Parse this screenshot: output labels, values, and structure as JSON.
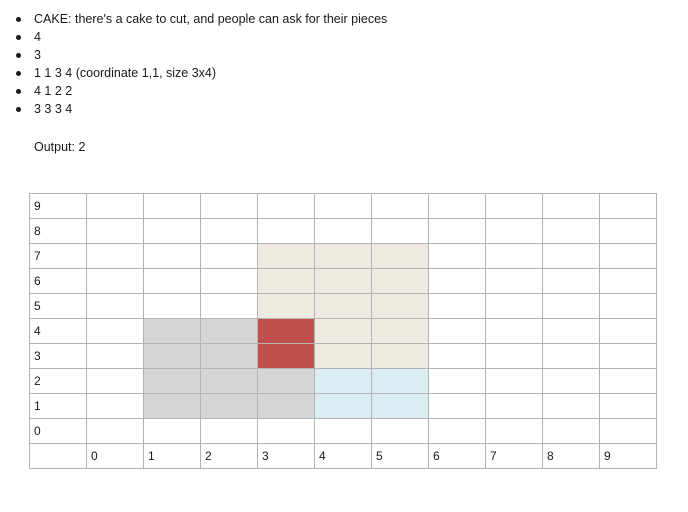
{
  "bullets": [
    "CAKE: there's a cake to cut, and people can ask for their pieces",
    "4",
    "3",
    "1 1 3 4 (coordinate 1,1, size 3x4)",
    "4 1 2 2",
    "3 3 3 4"
  ],
  "output": "Output: 2",
  "grid": {
    "row_labels": [
      "9",
      "8",
      "7",
      "6",
      "5",
      "4",
      "3",
      "2",
      "1",
      "0"
    ],
    "col_labels": [
      "0",
      "1",
      "2",
      "3",
      "4",
      "5",
      "6",
      "7",
      "8",
      "9"
    ],
    "colors": {
      "gray": "#d6d6d6",
      "cream": "#eeeae0",
      "red": "#c0504d",
      "blue": "#dbecf2"
    },
    "cells": [
      [
        "",
        "",
        "",
        "",
        "",
        "",
        "",
        "",
        "",
        ""
      ],
      [
        "",
        "",
        "",
        "",
        "",
        "",
        "",
        "",
        "",
        ""
      ],
      [
        "",
        "",
        "",
        "cream",
        "cream",
        "cream",
        "",
        "",
        "",
        ""
      ],
      [
        "",
        "",
        "",
        "cream",
        "cream",
        "cream",
        "",
        "",
        "",
        ""
      ],
      [
        "",
        "",
        "",
        "cream",
        "cream",
        "cream",
        "",
        "",
        "",
        ""
      ],
      [
        "",
        "gray",
        "gray",
        "red",
        "cream",
        "cream",
        "",
        "",
        "",
        ""
      ],
      [
        "",
        "gray",
        "gray",
        "red",
        "cream",
        "cream",
        "",
        "",
        "",
        ""
      ],
      [
        "",
        "gray",
        "gray",
        "gray",
        "blue",
        "blue",
        "",
        "",
        "",
        ""
      ],
      [
        "",
        "gray",
        "gray",
        "gray",
        "blue",
        "blue",
        "",
        "",
        "",
        ""
      ],
      [
        "",
        "",
        "",
        "",
        "",
        "",
        "",
        "",
        "",
        ""
      ]
    ]
  }
}
